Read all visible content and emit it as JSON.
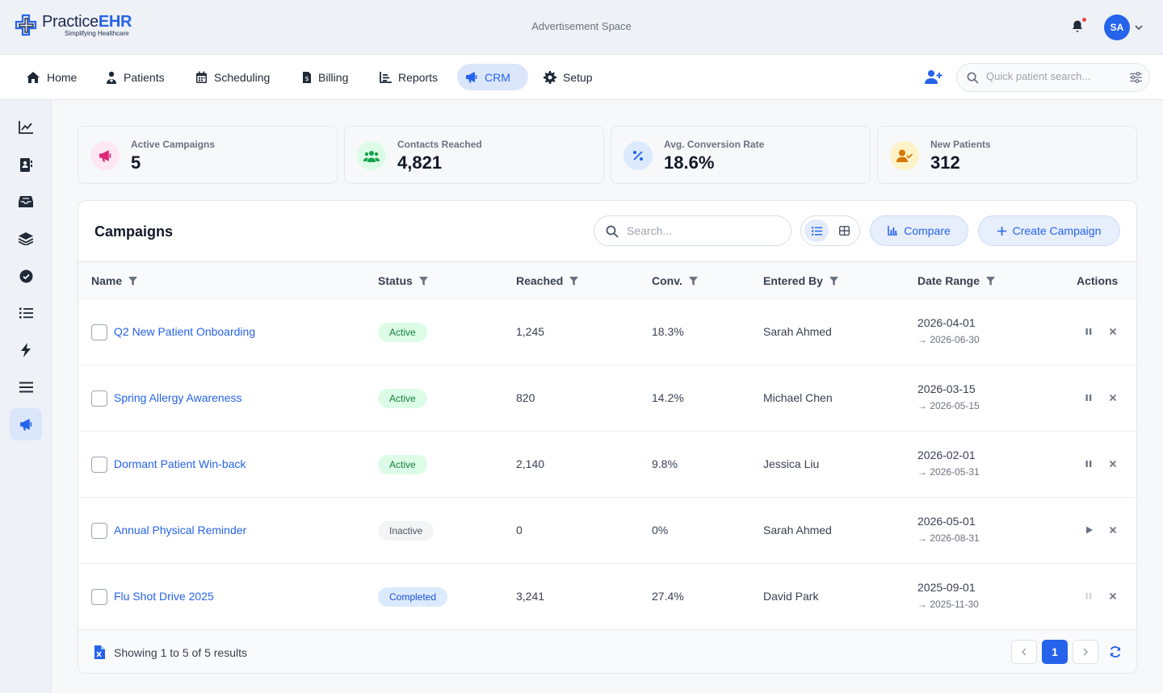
{
  "header": {
    "logo_name_a": "Practice",
    "logo_name_b": "EHR",
    "logo_tagline": "Simplifying Healthcare",
    "ad_text": "Advertisement Space",
    "user_initials": "SA"
  },
  "nav": {
    "items": [
      {
        "label": "Home",
        "icon": "home-icon"
      },
      {
        "label": "Patients",
        "icon": "patients-icon"
      },
      {
        "label": "Scheduling",
        "icon": "calendar-icon"
      },
      {
        "label": "Billing",
        "icon": "billing-icon"
      },
      {
        "label": "Reports",
        "icon": "reports-icon"
      },
      {
        "label": "CRM",
        "icon": "megaphone-icon",
        "active": true
      },
      {
        "label": "Setup",
        "icon": "gear-icon"
      }
    ],
    "search_placeholder": "Quick patient search..."
  },
  "sidebar": {
    "icons": [
      "chart-line-icon",
      "contacts-book-icon",
      "inbox-icon",
      "layers-icon",
      "check-circle-icon",
      "list-icon",
      "bolt-icon",
      "menu-lines-icon",
      "megaphone-icon"
    ],
    "active_index": 8
  },
  "stats": [
    {
      "label": "Active Campaigns",
      "value": "5",
      "icon": "megaphone-icon",
      "color": "#db2777",
      "bg": "#fce7f3"
    },
    {
      "label": "Contacts Reached",
      "value": "4,821",
      "icon": "users-icon",
      "color": "#16a34a",
      "bg": "#dcfce7"
    },
    {
      "label": "Avg. Conversion Rate",
      "value": "18.6%",
      "icon": "percent-icon",
      "color": "#2563eb",
      "bg": "#dbeafe"
    },
    {
      "label": "New Patients",
      "value": "312",
      "icon": "user-check-icon",
      "color": "#d97706",
      "bg": "#fef3c7"
    }
  ],
  "campaigns": {
    "title": "Campaigns",
    "search_placeholder": "Search...",
    "compare_label": "Compare",
    "create_label": "Create Campaign",
    "columns": {
      "name": "Name",
      "status": "Status",
      "reached": "Reached",
      "conv": "Conv.",
      "entered_by": "Entered By",
      "date_range": "Date Range",
      "actions": "Actions"
    },
    "rows": [
      {
        "name": "Q2 New Patient Onboarding",
        "status": "Active",
        "reached": "1,245",
        "conv": "18.3%",
        "entered_by": "Sarah Ahmed",
        "start": "2026-04-01",
        "end": "→ 2026-06-30",
        "action": "pause"
      },
      {
        "name": "Spring Allergy Awareness",
        "status": "Active",
        "reached": "820",
        "conv": "14.2%",
        "entered_by": "Michael Chen",
        "start": "2026-03-15",
        "end": "→ 2026-05-15",
        "action": "pause"
      },
      {
        "name": "Dormant Patient Win-back",
        "status": "Active",
        "reached": "2,140",
        "conv": "9.8%",
        "entered_by": "Jessica Liu",
        "start": "2026-02-01",
        "end": "→ 2026-05-31",
        "action": "pause"
      },
      {
        "name": "Annual Physical Reminder",
        "status": "Inactive",
        "reached": "0",
        "conv": "0%",
        "entered_by": "Sarah Ahmed",
        "start": "2026-05-01",
        "end": "→ 2026-08-31",
        "action": "play"
      },
      {
        "name": "Flu Shot Drive 2025",
        "status": "Completed",
        "reached": "3,241",
        "conv": "27.4%",
        "entered_by": "David Park",
        "start": "2025-09-01",
        "end": "→ 2025-11-30",
        "action": "pause-disabled"
      }
    ],
    "footer": {
      "results_text": "Showing 1 to 5 of 5 results",
      "current_page": "1"
    }
  }
}
